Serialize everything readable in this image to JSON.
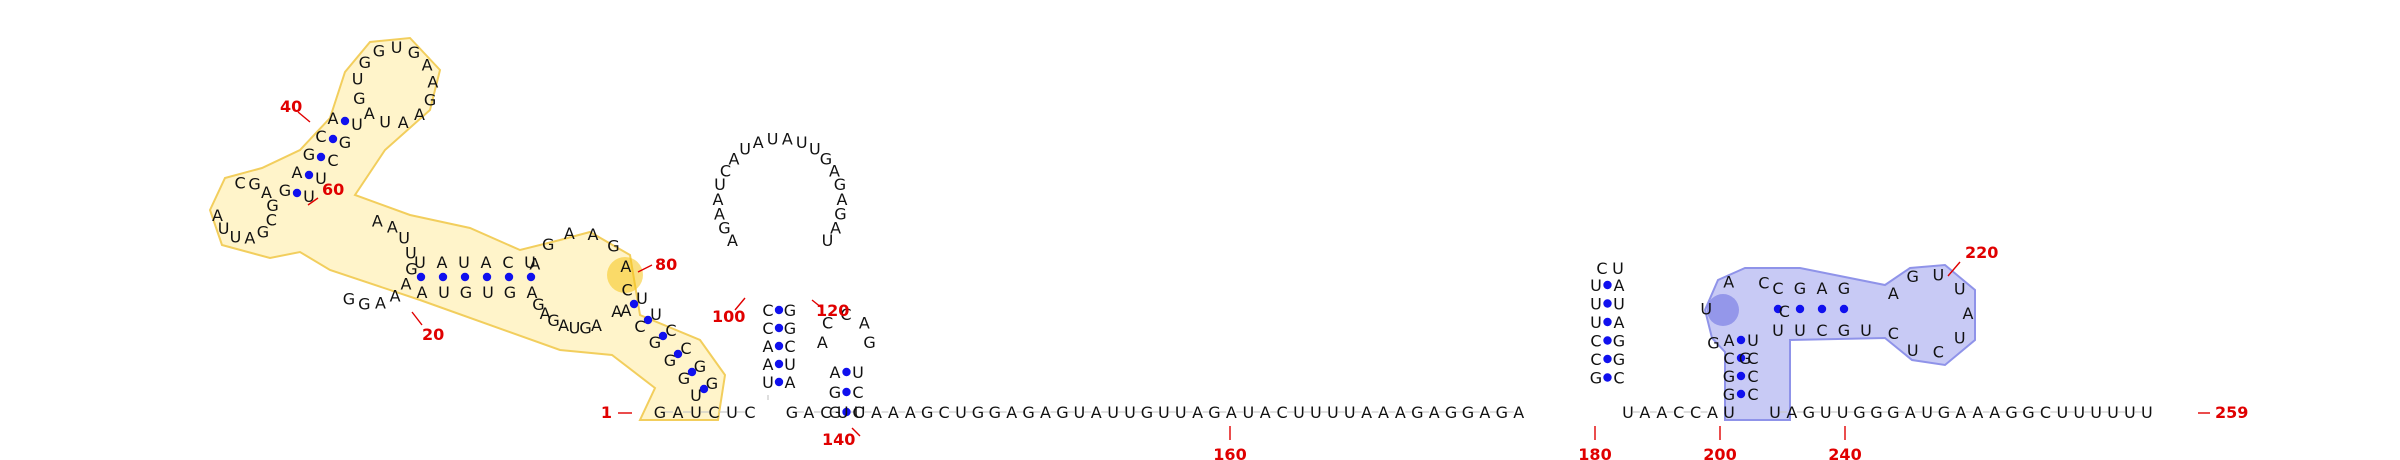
{
  "sequence_label": "RNA secondary structure",
  "colors": {
    "nucleotide": "#111111",
    "base_pair_dot": "#1010ee",
    "number": "#e00000",
    "highlight_yellow_fill": "#fff4c8",
    "highlight_yellow_stroke": "#f2cc55",
    "highlight_yellow_strong": "#f5c518",
    "highlight_blue_fill": "#c6c8f5",
    "highlight_blue_stroke": "#8a8ee8",
    "highlight_blue_strong": "#6a6ee0"
  },
  "numbers": {
    "n1": "1",
    "n20": "20",
    "n40": "40",
    "n60": "60",
    "n80": "80",
    "n100": "100",
    "n120": "120",
    "n140": "140",
    "n160": "160",
    "n180": "180",
    "n200": "200",
    "n220": "220",
    "n240": "240",
    "n259": "259"
  },
  "tail_sequence": "UUAAAGCUGGAGAGUAUUGUUAGAUACUUUUAAAGAGGAGA",
  "spacer_sequence": "UAACCA",
  "end_sequence": "UAGUUGGGAUGAAAGGCUUUUUU",
  "domain1": {
    "start": "GAUCUC",
    "hairpin40": [
      "U",
      "G",
      "G",
      "U",
      "G",
      "A",
      "A",
      "G",
      "A",
      "A",
      "U",
      "A",
      "G"
    ],
    "multiloop": [
      "C",
      "G",
      "A",
      "G",
      "C",
      "G",
      "A",
      "U",
      "U",
      "A"
    ]
  },
  "hairpin100": {
    "left": [
      "C",
      "C",
      "A",
      "A",
      "U"
    ],
    "right": [
      "G",
      "G",
      "C",
      "U",
      "A"
    ],
    "loop": [
      "A",
      "G",
      "A",
      "A",
      "U",
      "C",
      "A",
      "U",
      "A",
      "U",
      "A",
      "U",
      "U",
      "G",
      "A",
      "G",
      "A",
      "G",
      "A",
      "U"
    ]
  },
  "hairpin140": {
    "left": [
      "A",
      "G",
      "G"
    ],
    "right": [
      "U",
      "C",
      "C"
    ],
    "loop": [
      "A",
      "C",
      "C",
      "A",
      "G"
    ]
  },
  "hairpin180": {
    "left": [
      "U",
      "U",
      "U",
      "C",
      "C",
      "G"
    ],
    "right": [
      "A",
      "U",
      "A",
      "G",
      "G",
      "C"
    ],
    "loop": [
      "C",
      "U"
    ]
  },
  "domain200": {
    "stem_left": [
      "A",
      "C",
      "G",
      "G",
      "U"
    ],
    "stem_right": [
      "U",
      "C",
      "C",
      "C"
    ],
    "top_left": [
      "C",
      "G",
      "A",
      "G"
    ],
    "top_right": [
      "U",
      "U",
      "C",
      "G",
      "U"
    ],
    "loop220": [
      "A",
      "G",
      "U",
      "U",
      "A",
      "U",
      "C",
      "U",
      "C"
    ],
    "ring": [
      "G",
      "G",
      "U",
      "A",
      "C",
      "C"
    ]
  }
}
